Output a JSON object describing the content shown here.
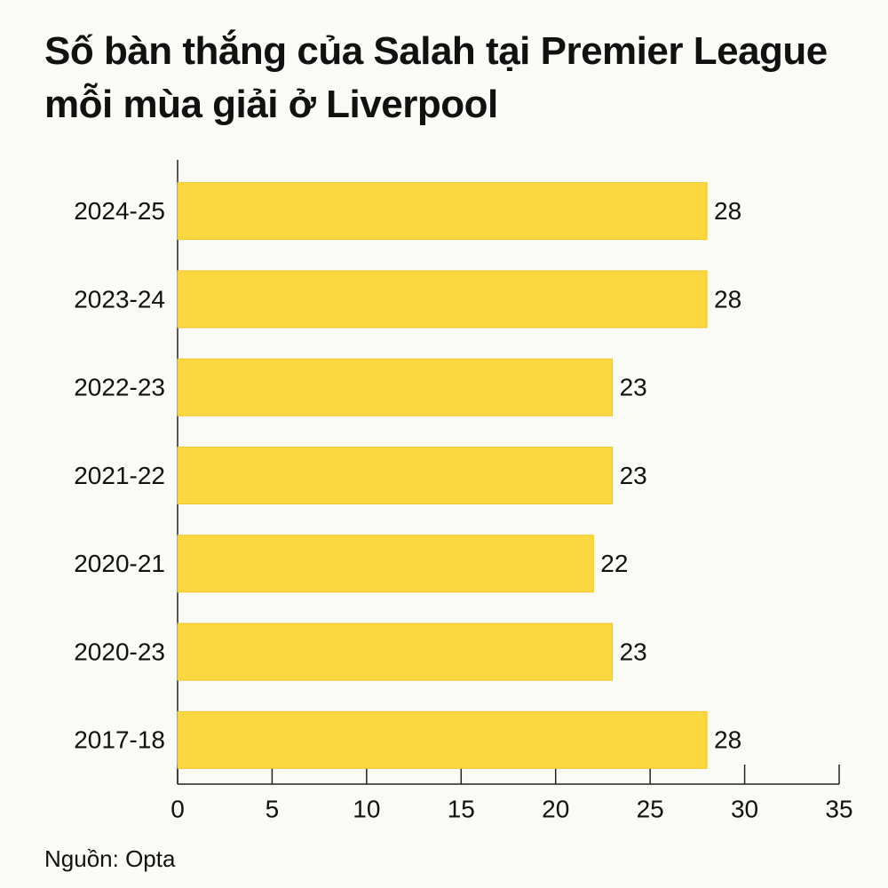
{
  "chart_data": {
    "type": "bar",
    "orientation": "horizontal",
    "title": "Số bàn thắng của Salah tại Premier League mỗi mùa giải ở Liverpool",
    "categories": [
      "2024-25",
      "2023-24",
      "2022-23",
      "2021-22",
      "2020-21",
      "2020-23",
      "2017-18"
    ],
    "values": [
      28,
      28,
      23,
      23,
      22,
      23,
      28
    ],
    "color": "#fbd83f",
    "xlim": [
      0,
      35
    ],
    "xticks": [
      0,
      5,
      10,
      15,
      20,
      25,
      30,
      35
    ],
    "source": "Nguồn: Opta"
  }
}
